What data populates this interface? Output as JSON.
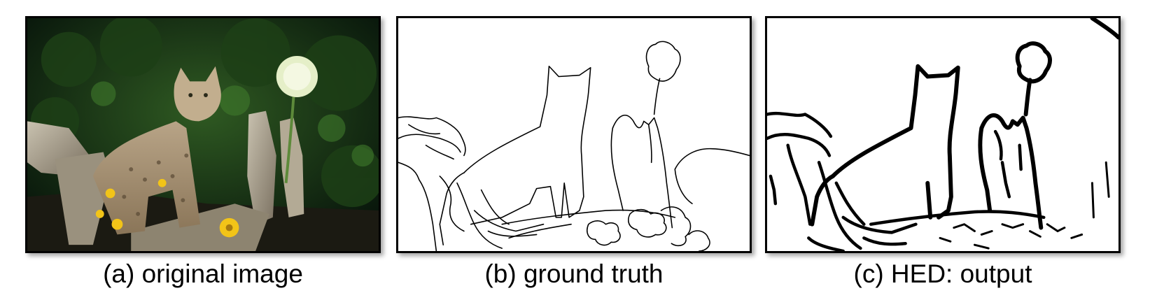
{
  "panels": [
    {
      "id": "a",
      "caption": "(a) original image",
      "content": "photo",
      "accent_color": "#1f4a1a"
    },
    {
      "id": "b",
      "caption": "(b) ground truth",
      "content": "line-drawing-thin",
      "accent_color": "#000000"
    },
    {
      "id": "c",
      "caption": "(c) HED: output",
      "content": "line-drawing-thick",
      "accent_color": "#000000"
    }
  ]
}
